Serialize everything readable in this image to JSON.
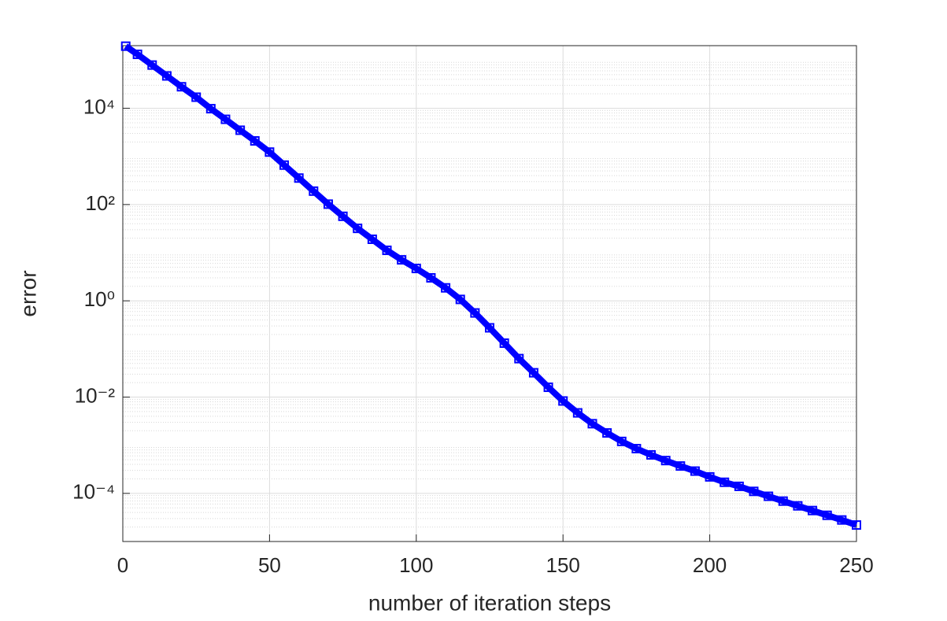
{
  "chart_data": {
    "type": "line",
    "xlabel": "number of iteration steps",
    "ylabel": "error",
    "x": [
      1,
      5,
      10,
      15,
      20,
      25,
      30,
      35,
      40,
      45,
      50,
      55,
      60,
      65,
      70,
      75,
      80,
      85,
      90,
      95,
      100,
      105,
      110,
      115,
      120,
      125,
      130,
      135,
      140,
      145,
      150,
      155,
      160,
      165,
      170,
      175,
      180,
      185,
      190,
      195,
      200,
      205,
      210,
      215,
      220,
      225,
      230,
      235,
      240,
      245,
      250
    ],
    "values": [
      195000,
      132000,
      79000,
      47000,
      28000,
      17000,
      9800,
      5900,
      3500,
      2100,
      1230,
      660,
      355,
      190,
      102,
      57,
      32,
      19,
      11.2,
      7.1,
      4.7,
      3.0,
      1.86,
      1.07,
      0.56,
      0.275,
      0.132,
      0.063,
      0.032,
      0.016,
      0.0083,
      0.0047,
      0.0028,
      0.0018,
      0.0012,
      0.00085,
      0.00063,
      0.00048,
      0.00037,
      0.00029,
      0.00022,
      0.00017,
      0.00014,
      0.00011,
      8.7e-05,
      6.9e-05,
      5.5e-05,
      4.4e-05,
      3.5e-05,
      2.8e-05,
      2.2e-05
    ],
    "color": "#0000ff",
    "marker": "square",
    "xlim": [
      0,
      250
    ],
    "xticks": [
      0,
      50,
      100,
      150,
      200,
      250
    ],
    "ylim": [
      1e-05,
      200000
    ],
    "ylog": true,
    "yticks": [
      {
        "value": 0.0001,
        "label": "10⁻⁴"
      },
      {
        "value": 0.01,
        "label": "10⁻²"
      },
      {
        "value": 1,
        "label": "10⁰"
      },
      {
        "value": 100,
        "label": "10²"
      },
      {
        "value": 10000,
        "label": "10⁴"
      }
    ],
    "grid": true,
    "minor_grid": true
  }
}
